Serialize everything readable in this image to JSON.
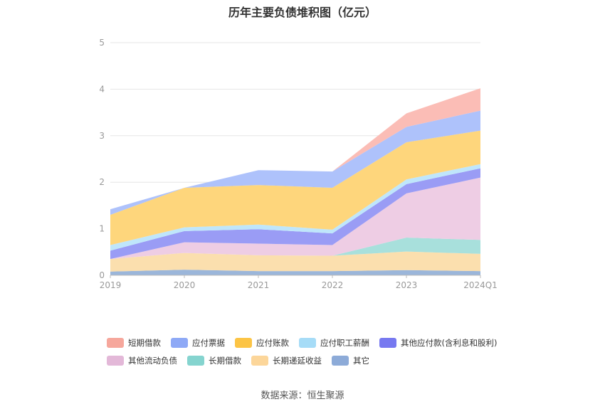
{
  "chart_data": {
    "type": "area",
    "title": "历年主要负债堆积图（亿元）",
    "categories": [
      "2019",
      "2020",
      "2021",
      "2022",
      "2023",
      "2024Q1"
    ],
    "ylim": [
      0,
      5
    ],
    "yticks": [
      "0",
      "1",
      "2",
      "3",
      "4",
      "5"
    ],
    "stacked": true,
    "grid": true,
    "legend_position": "bottom",
    "series": [
      {
        "name": "其它",
        "color": "#9bb6da",
        "values": [
          0.08,
          0.12,
          0.09,
          0.09,
          0.11,
          0.09
        ]
      },
      {
        "name": "长期递延收益",
        "color": "#fbdfae",
        "values": [
          0.27,
          0.36,
          0.34,
          0.33,
          0.4,
          0.37
        ]
      },
      {
        "name": "长期借款",
        "color": "#a8e0dc",
        "values": [
          0.0,
          0.0,
          0.0,
          0.0,
          0.3,
          0.3
        ]
      },
      {
        "name": "其他流动负债",
        "color": "#eecde4",
        "values": [
          0.0,
          0.23,
          0.25,
          0.23,
          0.95,
          1.34
        ]
      },
      {
        "name": "其他应付款(含利息和股利)",
        "color": "#9a9cf5",
        "values": [
          0.18,
          0.24,
          0.31,
          0.25,
          0.2,
          0.2
        ]
      },
      {
        "name": "应付职工薪酬",
        "color": "#bfe6fb",
        "values": [
          0.12,
          0.08,
          0.1,
          0.08,
          0.1,
          0.09
        ]
      },
      {
        "name": "应付账款",
        "color": "#fed67c",
        "values": [
          0.65,
          0.85,
          0.85,
          0.9,
          0.8,
          0.72
        ]
      },
      {
        "name": "应付票据",
        "color": "#aec2fb",
        "values": [
          0.12,
          0.0,
          0.32,
          0.35,
          0.33,
          0.43
        ]
      },
      {
        "name": "短期借款",
        "color": "#fbbdb6",
        "values": [
          0.0,
          0.0,
          0.0,
          0.0,
          0.29,
          0.48
        ]
      }
    ]
  },
  "legend": {
    "row1": [
      {
        "label": "短期借款",
        "color": "#f6a79c"
      },
      {
        "label": "应付票据",
        "color": "#8ea9f6"
      },
      {
        "label": "应付账款",
        "color": "#fcc445"
      },
      {
        "label": "应付职工薪酬",
        "color": "#a6dcf7"
      },
      {
        "label": "其他应付款(含利息和股利)",
        "color": "#7779f0"
      }
    ],
    "row2": [
      {
        "label": "其他流动负债",
        "color": "#e3b8d8"
      },
      {
        "label": "长期借款",
        "color": "#85d4cf"
      },
      {
        "label": "长期递延收益",
        "color": "#fcd69a"
      },
      {
        "label": "其它",
        "color": "#8dabd8"
      }
    ]
  },
  "source": "数据来源：恒生聚源"
}
